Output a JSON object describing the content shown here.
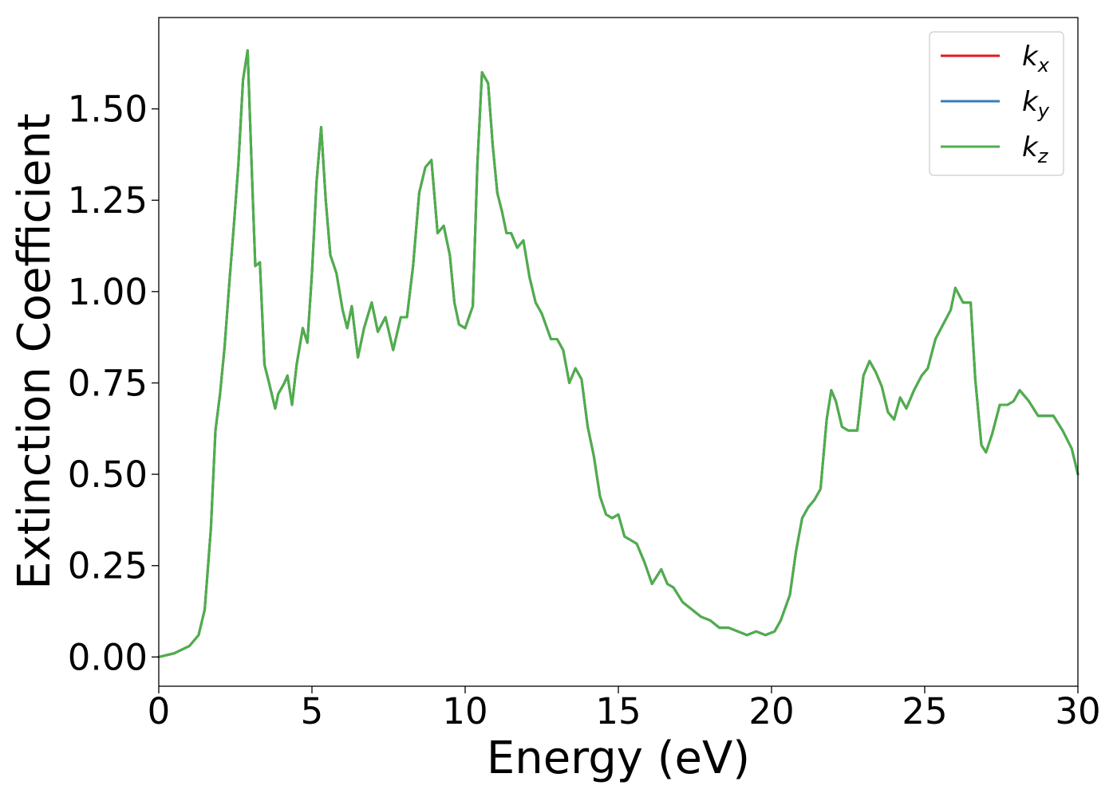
{
  "chart_data": {
    "type": "line",
    "title": "",
    "xlabel": "Energy (eV)",
    "ylabel": "Extinction Coefficient",
    "xlim": [
      0,
      30
    ],
    "ylim": [
      -0.08,
      1.75
    ],
    "xticks": [
      0,
      5,
      10,
      15,
      20,
      25,
      30
    ],
    "xtick_labels": [
      "0",
      "5",
      "10",
      "15",
      "20",
      "25",
      "30"
    ],
    "yticks": [
      0,
      0.25,
      0.5,
      0.75,
      1.0,
      1.25,
      1.5
    ],
    "ytick_labels": [
      "0.00",
      "0.25",
      "0.50",
      "0.75",
      "1.00",
      "1.25",
      "1.50"
    ],
    "grid": false,
    "legend_position": "top-right",
    "x": [
      0,
      0.5,
      1.0,
      1.3,
      1.5,
      1.7,
      1.85,
      2.0,
      2.15,
      2.3,
      2.45,
      2.6,
      2.75,
      2.9,
      3.05,
      3.15,
      3.3,
      3.45,
      3.6,
      3.8,
      3.9,
      4.1,
      4.2,
      4.35,
      4.5,
      4.7,
      4.85,
      5.0,
      5.15,
      5.3,
      5.45,
      5.6,
      5.8,
      6.0,
      6.15,
      6.3,
      6.5,
      6.7,
      6.95,
      7.15,
      7.4,
      7.65,
      7.9,
      8.1,
      8.3,
      8.5,
      8.7,
      8.9,
      9.1,
      9.3,
      9.5,
      9.65,
      9.8,
      10.0,
      10.25,
      10.4,
      10.55,
      10.75,
      10.9,
      11.05,
      11.2,
      11.35,
      11.5,
      11.7,
      11.9,
      12.1,
      12.3,
      12.5,
      12.8,
      13.0,
      13.2,
      13.4,
      13.6,
      13.8,
      14.0,
      14.2,
      14.4,
      14.6,
      14.8,
      15.0,
      15.2,
      15.4,
      15.6,
      15.85,
      16.1,
      16.4,
      16.6,
      16.8,
      17.1,
      17.4,
      17.7,
      18.0,
      18.3,
      18.6,
      18.9,
      19.2,
      19.5,
      19.8,
      20.1,
      20.3,
      20.6,
      20.8,
      21.0,
      21.2,
      21.4,
      21.6,
      21.8,
      21.95,
      22.1,
      22.3,
      22.5,
      22.8,
      23.0,
      23.2,
      23.4,
      23.6,
      23.8,
      24.0,
      24.2,
      24.4,
      24.65,
      24.9,
      25.1,
      25.35,
      25.6,
      25.85,
      26.0,
      26.25,
      26.5,
      26.65,
      26.85,
      27.0,
      27.2,
      27.45,
      27.7,
      27.9,
      28.1,
      28.4,
      28.7,
      29.0,
      29.2,
      29.5,
      29.8,
      30.0
    ],
    "series": [
      {
        "name": "k_x",
        "color": "#e41a1c",
        "values": [
          0.0,
          0.01,
          0.03,
          0.06,
          0.13,
          0.35,
          0.62,
          0.72,
          0.85,
          1.02,
          1.18,
          1.35,
          1.58,
          1.66,
          1.3,
          1.07,
          1.08,
          0.8,
          0.75,
          0.68,
          0.72,
          0.75,
          0.77,
          0.69,
          0.8,
          0.9,
          0.86,
          1.05,
          1.3,
          1.45,
          1.25,
          1.1,
          1.05,
          0.95,
          0.9,
          0.96,
          0.82,
          0.9,
          0.97,
          0.89,
          0.93,
          0.84,
          0.93,
          0.93,
          1.07,
          1.27,
          1.34,
          1.36,
          1.16,
          1.18,
          1.1,
          0.97,
          0.91,
          0.9,
          0.96,
          1.35,
          1.6,
          1.57,
          1.4,
          1.27,
          1.22,
          1.16,
          1.16,
          1.12,
          1.14,
          1.04,
          0.97,
          0.94,
          0.87,
          0.87,
          0.84,
          0.75,
          0.79,
          0.76,
          0.63,
          0.55,
          0.44,
          0.39,
          0.38,
          0.39,
          0.33,
          0.32,
          0.31,
          0.26,
          0.2,
          0.24,
          0.2,
          0.19,
          0.15,
          0.13,
          0.11,
          0.1,
          0.08,
          0.08,
          0.07,
          0.06,
          0.07,
          0.06,
          0.07,
          0.1,
          0.17,
          0.29,
          0.38,
          0.41,
          0.43,
          0.46,
          0.65,
          0.73,
          0.7,
          0.63,
          0.62,
          0.62,
          0.77,
          0.81,
          0.78,
          0.74,
          0.67,
          0.65,
          0.71,
          0.68,
          0.73,
          0.77,
          0.79,
          0.87,
          0.91,
          0.95,
          1.01,
          0.97,
          0.97,
          0.76,
          0.58,
          0.56,
          0.61,
          0.69,
          0.69,
          0.7,
          0.73,
          0.7,
          0.66,
          0.66,
          0.66,
          0.62,
          0.57,
          0.5
        ]
      },
      {
        "name": "k_y",
        "color": "#377eb8",
        "values": [
          0.0,
          0.01,
          0.03,
          0.06,
          0.13,
          0.35,
          0.62,
          0.72,
          0.85,
          1.02,
          1.18,
          1.35,
          1.58,
          1.66,
          1.3,
          1.07,
          1.08,
          0.8,
          0.75,
          0.68,
          0.72,
          0.75,
          0.77,
          0.69,
          0.8,
          0.9,
          0.86,
          1.05,
          1.3,
          1.45,
          1.25,
          1.1,
          1.05,
          0.95,
          0.9,
          0.96,
          0.82,
          0.9,
          0.97,
          0.89,
          0.93,
          0.84,
          0.93,
          0.93,
          1.07,
          1.27,
          1.34,
          1.36,
          1.16,
          1.18,
          1.1,
          0.97,
          0.91,
          0.9,
          0.96,
          1.35,
          1.6,
          1.57,
          1.4,
          1.27,
          1.22,
          1.16,
          1.16,
          1.12,
          1.14,
          1.04,
          0.97,
          0.94,
          0.87,
          0.87,
          0.84,
          0.75,
          0.79,
          0.76,
          0.63,
          0.55,
          0.44,
          0.39,
          0.38,
          0.39,
          0.33,
          0.32,
          0.31,
          0.26,
          0.2,
          0.24,
          0.2,
          0.19,
          0.15,
          0.13,
          0.11,
          0.1,
          0.08,
          0.08,
          0.07,
          0.06,
          0.07,
          0.06,
          0.07,
          0.1,
          0.17,
          0.29,
          0.38,
          0.41,
          0.43,
          0.46,
          0.65,
          0.73,
          0.7,
          0.63,
          0.62,
          0.62,
          0.77,
          0.81,
          0.78,
          0.74,
          0.67,
          0.65,
          0.71,
          0.68,
          0.73,
          0.77,
          0.79,
          0.87,
          0.91,
          0.95,
          1.01,
          0.97,
          0.97,
          0.76,
          0.58,
          0.56,
          0.61,
          0.69,
          0.69,
          0.7,
          0.73,
          0.7,
          0.66,
          0.66,
          0.66,
          0.62,
          0.57,
          0.5
        ]
      },
      {
        "name": "k_z",
        "color": "#4daf4a",
        "values": [
          0.0,
          0.01,
          0.03,
          0.06,
          0.13,
          0.35,
          0.62,
          0.72,
          0.85,
          1.02,
          1.18,
          1.35,
          1.58,
          1.66,
          1.3,
          1.07,
          1.08,
          0.8,
          0.75,
          0.68,
          0.72,
          0.75,
          0.77,
          0.69,
          0.8,
          0.9,
          0.86,
          1.05,
          1.3,
          1.45,
          1.25,
          1.1,
          1.05,
          0.95,
          0.9,
          0.96,
          0.82,
          0.9,
          0.97,
          0.89,
          0.93,
          0.84,
          0.93,
          0.93,
          1.07,
          1.27,
          1.34,
          1.36,
          1.16,
          1.18,
          1.1,
          0.97,
          0.91,
          0.9,
          0.96,
          1.35,
          1.6,
          1.57,
          1.4,
          1.27,
          1.22,
          1.16,
          1.16,
          1.12,
          1.14,
          1.04,
          0.97,
          0.94,
          0.87,
          0.87,
          0.84,
          0.75,
          0.79,
          0.76,
          0.63,
          0.55,
          0.44,
          0.39,
          0.38,
          0.39,
          0.33,
          0.32,
          0.31,
          0.26,
          0.2,
          0.24,
          0.2,
          0.19,
          0.15,
          0.13,
          0.11,
          0.1,
          0.08,
          0.08,
          0.07,
          0.06,
          0.07,
          0.06,
          0.07,
          0.1,
          0.17,
          0.29,
          0.38,
          0.41,
          0.43,
          0.46,
          0.65,
          0.73,
          0.7,
          0.63,
          0.62,
          0.62,
          0.77,
          0.81,
          0.78,
          0.74,
          0.67,
          0.65,
          0.71,
          0.68,
          0.73,
          0.77,
          0.79,
          0.87,
          0.91,
          0.95,
          1.01,
          0.97,
          0.97,
          0.76,
          0.58,
          0.56,
          0.61,
          0.69,
          0.69,
          0.7,
          0.73,
          0.7,
          0.66,
          0.66,
          0.66,
          0.62,
          0.57,
          0.5
        ]
      }
    ],
    "legend": [
      {
        "base": "k",
        "sub": "x",
        "color": "#e41a1c"
      },
      {
        "base": "k",
        "sub": "y",
        "color": "#377eb8"
      },
      {
        "base": "k",
        "sub": "z",
        "color": "#4daf4a"
      }
    ]
  }
}
